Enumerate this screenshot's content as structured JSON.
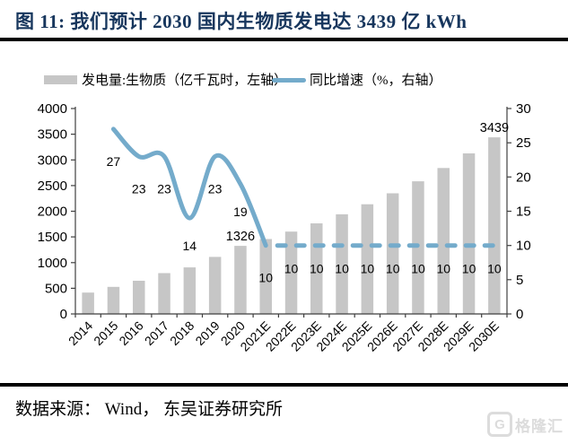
{
  "title": "图 11: 我们预计 2030 国内生物质发电达 3439 亿 kWh",
  "legend": {
    "bar": {
      "label": "发电量:生物质（亿千瓦时，左轴）",
      "color": "#C6C6C6"
    },
    "line": {
      "label": "同比增速（%，右轴）",
      "color": "#74ABCB"
    }
  },
  "source": {
    "text": "数据来源： Wind， 东吴证券研究所"
  },
  "watermark": {
    "icon": "G",
    "text": "格隆汇"
  },
  "colors": {
    "bar": "#C6C6C6",
    "line": "#74ABCB",
    "axis": "#3F3F3F",
    "label": "#000000",
    "title": "#17365D"
  },
  "chart_data": {
    "type": "bar+line",
    "categories": [
      "2014",
      "2015",
      "2016",
      "2017",
      "2018",
      "2019",
      "2020",
      "2021E",
      "2022E",
      "2023E",
      "2024E",
      "2025E",
      "2026E",
      "2027E",
      "2028E",
      "2029E",
      "2030E"
    ],
    "series": [
      {
        "name": "发电量:生物质（亿千瓦时，左轴）",
        "type": "bar",
        "axis": "left",
        "color": "#C6C6C6",
        "values": [
          416,
          527,
          647,
          795,
          906,
          1111,
          1326,
          1459,
          1604,
          1765,
          1941,
          2136,
          2349,
          2584,
          2842,
          3127,
          3439
        ],
        "bar_labels": [
          {
            "category": "2020",
            "text": "1326"
          },
          {
            "category": "2030E",
            "text": "3439"
          }
        ]
      },
      {
        "name": "同比增速（%，右轴）",
        "type": "line",
        "axis": "right",
        "color": "#74ABCB",
        "values": [
          null,
          27,
          23,
          23,
          14,
          23,
          19,
          10,
          10,
          10,
          10,
          10,
          10,
          10,
          10,
          10,
          10
        ],
        "solid_until_category": "2021E",
        "dashed_from_category": "2021E",
        "point_labels": [
          null,
          "27",
          "23",
          "23",
          "14",
          "23",
          "19",
          "10",
          "10",
          "10",
          "10",
          "10",
          "10",
          "10",
          "10",
          "10",
          "10"
        ]
      }
    ],
    "left_axis": {
      "min": 0,
      "max": 4000,
      "ticks": [
        0,
        500,
        1000,
        1500,
        2000,
        2500,
        3000,
        3500,
        4000
      ]
    },
    "right_axis": {
      "min": 0,
      "max": 30,
      "ticks": [
        0,
        5,
        10,
        15,
        20,
        25,
        30
      ]
    },
    "grid": false,
    "legend_position": "top"
  }
}
